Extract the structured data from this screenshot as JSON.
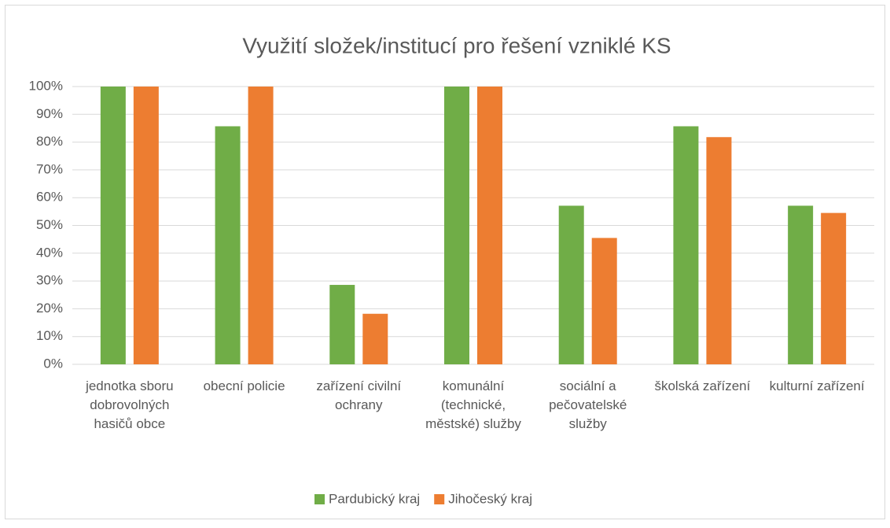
{
  "chart_data": {
    "type": "bar",
    "title": "Využití složek/institucí pro řešení vzniklé KS",
    "categories": [
      "jednotka sboru dobrovolných hasičů obce",
      "obecní policie",
      "zařízení civilní ochrany",
      "komunální (technické, městské) služby",
      "sociální a pečovatelské služby",
      "školská zařízení",
      "kulturní zařízení"
    ],
    "series": [
      {
        "name": "Pardubický kraj",
        "color": "#70ad47",
        "values": [
          100,
          85.7,
          28.6,
          100,
          57.1,
          85.7,
          57.1
        ]
      },
      {
        "name": "Jihočeský kraj",
        "color": "#ed7d31",
        "values": [
          100,
          100,
          18.2,
          100,
          45.5,
          81.8,
          54.5
        ]
      }
    ],
    "ylim": [
      0,
      100
    ],
    "yticks": [
      {
        "value": 0,
        "label": "0%"
      },
      {
        "value": 10,
        "label": "10%"
      },
      {
        "value": 20,
        "label": "20%"
      },
      {
        "value": 30,
        "label": "30%"
      },
      {
        "value": 40,
        "label": "40%"
      },
      {
        "value": 50,
        "label": "50%"
      },
      {
        "value": 60,
        "label": "60%"
      },
      {
        "value": 70,
        "label": "70%"
      },
      {
        "value": 80,
        "label": "80%"
      },
      {
        "value": 90,
        "label": "90%"
      },
      {
        "value": 100,
        "label": "100%"
      }
    ],
    "grid": true,
    "legend": "bottom"
  }
}
